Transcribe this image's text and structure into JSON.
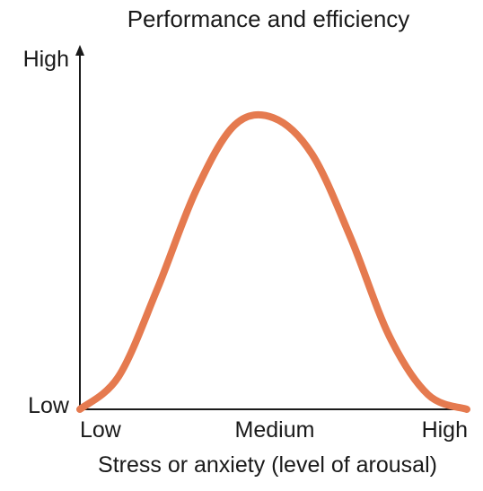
{
  "chart_data": {
    "type": "line",
    "title": "Performance and efficiency",
    "xlabel": "Stress or anxiety (level of arousal)",
    "ylabel": "",
    "x_tick_labels": [
      "Low",
      "Medium",
      "High"
    ],
    "y_tick_labels": [
      "Low",
      "High"
    ],
    "xlim": [
      0,
      1
    ],
    "ylim": [
      0,
      1
    ],
    "grid": false,
    "legend": "none",
    "curve_color": "#e57a4f",
    "axis_color": "#1a1a1a",
    "series": [
      {
        "x": [
          0.0,
          0.1,
          0.2,
          0.3,
          0.4,
          0.5,
          0.6,
          0.7,
          0.8,
          0.9,
          1.0
        ],
        "y": [
          0.0,
          0.09,
          0.33,
          0.6,
          0.78,
          0.8,
          0.7,
          0.47,
          0.2,
          0.04,
          0.0
        ]
      }
    ]
  }
}
